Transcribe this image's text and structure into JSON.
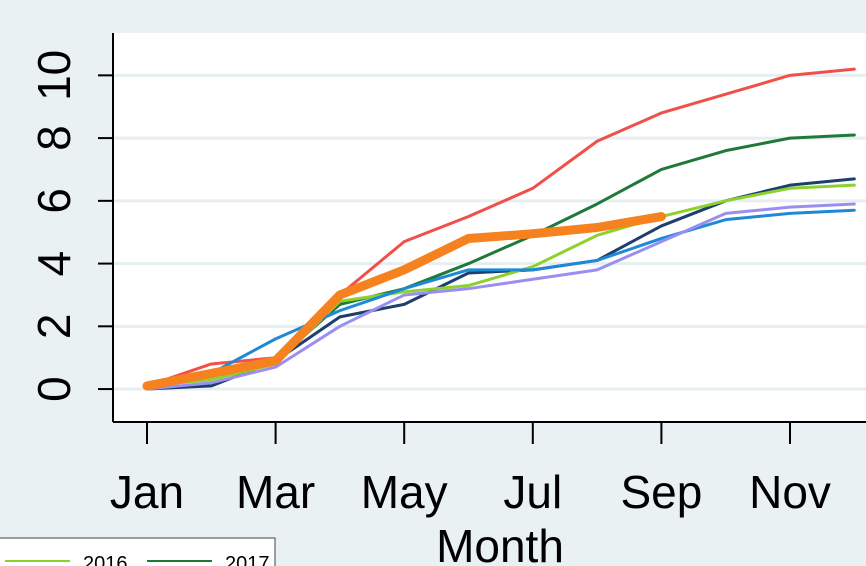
{
  "chart_data": {
    "type": "line",
    "x_label": "Month",
    "categories": [
      "Jan",
      null,
      "Mar",
      null,
      "May",
      null,
      "Jul",
      null,
      "Sep",
      null,
      "Nov",
      null
    ],
    "ylim": [
      -1.05,
      11.35
    ],
    "yticks": [
      0,
      2,
      4,
      6,
      8,
      10
    ],
    "grid": true,
    "series": [
      {
        "color": "#f0504a",
        "values": [
          0.1,
          0.8,
          1.0,
          3.0,
          4.7,
          5.5,
          6.4,
          7.9,
          8.8,
          9.4,
          10.0,
          10.2
        ]
      },
      {
        "name": "2017",
        "color": "#1f7a3a",
        "values": [
          0.05,
          0.4,
          0.9,
          2.7,
          3.2,
          4.0,
          4.9,
          5.9,
          7.0,
          7.6,
          8.0,
          8.1
        ]
      },
      {
        "color": "#1c3f6e",
        "values": [
          0.0,
          0.1,
          0.9,
          2.3,
          2.7,
          3.7,
          3.8,
          4.1,
          5.2,
          6.0,
          6.5,
          6.7
        ]
      },
      {
        "name": "2016",
        "color": "#8fd12c",
        "values": [
          0.1,
          0.3,
          0.8,
          2.8,
          3.1,
          3.3,
          3.9,
          4.9,
          5.5,
          6.0,
          6.4,
          6.5
        ]
      },
      {
        "color": "#1e8ad6",
        "values": [
          0.05,
          0.5,
          1.6,
          2.5,
          3.2,
          3.8,
          3.8,
          4.1,
          4.8,
          5.4,
          5.6,
          5.7
        ]
      },
      {
        "color": "#9a8ff0",
        "values": [
          0.0,
          0.2,
          0.7,
          2.0,
          3.0,
          3.2,
          3.5,
          3.8,
          4.7,
          5.6,
          5.8,
          5.9
        ]
      },
      {
        "color": "#f5821f",
        "width": 9,
        "values": [
          0.1,
          0.5,
          0.9,
          3.0,
          3.8,
          4.8,
          4.95,
          5.15,
          5.5,
          null,
          null,
          null
        ]
      }
    ]
  }
}
